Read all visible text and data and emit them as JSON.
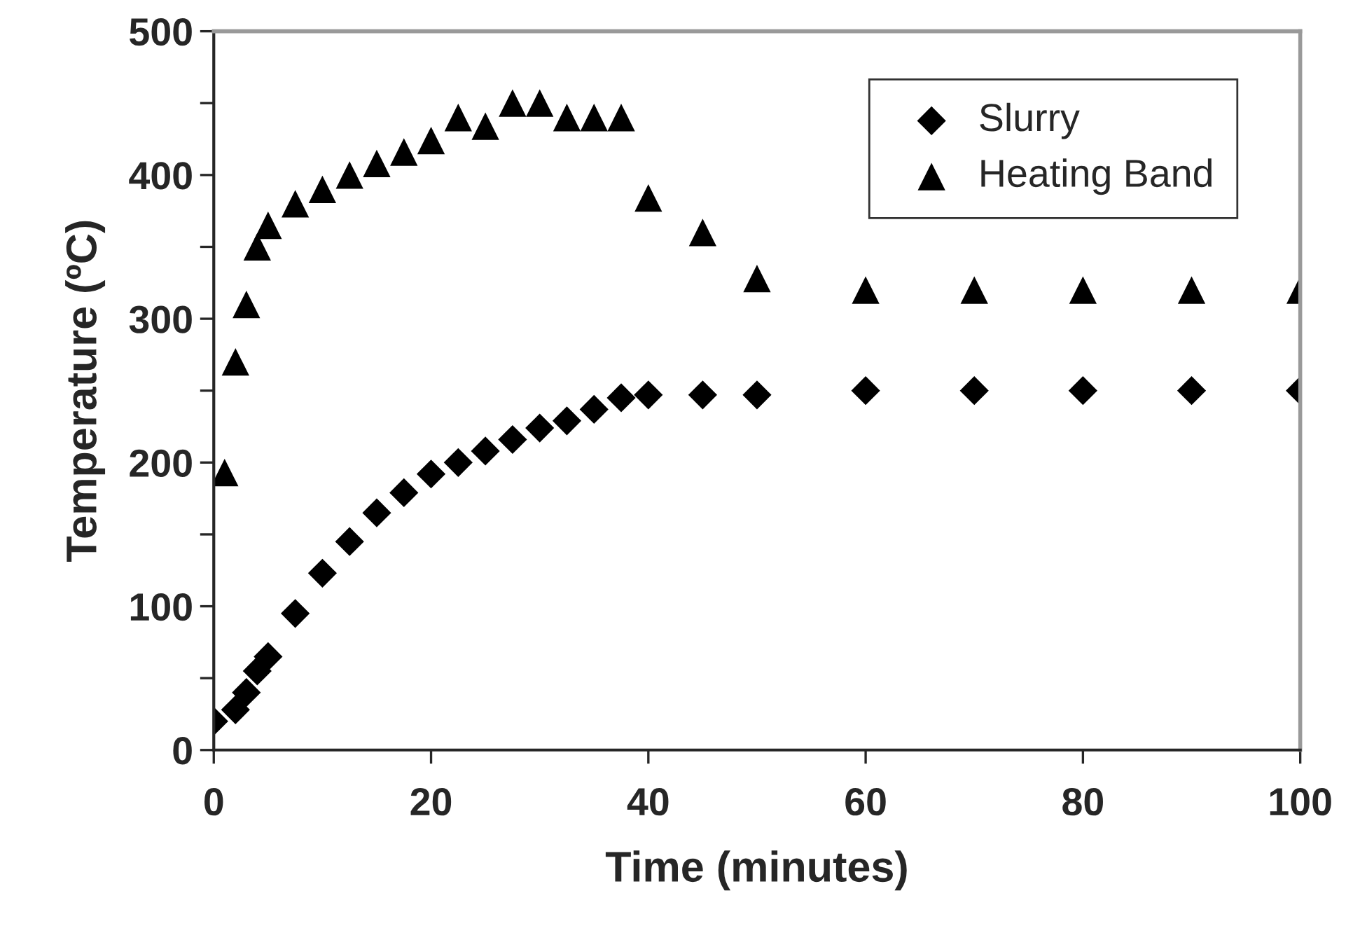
{
  "chart_data": {
    "type": "scatter",
    "xlabel": "Time (minutes)",
    "ylabel": "Temperature (ºC)",
    "xlim": [
      0,
      100
    ],
    "xticks": [
      0,
      20,
      40,
      60,
      80,
      100
    ],
    "ylim": [
      0,
      500
    ],
    "yticks": [
      0,
      {
        "value": 50,
        "label": null
      },
      100,
      {
        "value": 150,
        "label": null
      },
      200,
      {
        "value": 250,
        "label": null
      },
      300,
      {
        "value": 350,
        "label": null
      },
      400,
      {
        "value": 450,
        "label": null
      },
      500
    ],
    "legend": "top right",
    "grid": false,
    "series": [
      {
        "name": "Slurry",
        "color": "#000000",
        "marker": "diamond",
        "x": [
          0,
          2,
          3,
          4,
          5,
          7.5,
          10,
          12.5,
          15,
          17.5,
          20,
          22.5,
          25,
          27.5,
          30,
          32.5,
          35,
          37.5,
          40,
          45,
          50,
          60,
          70,
          80,
          90,
          100
        ],
        "values": [
          20,
          28,
          40,
          55,
          65,
          95,
          123,
          145,
          165,
          179,
          192,
          200,
          208,
          216,
          224,
          229,
          237,
          245,
          247,
          247,
          247,
          250,
          250,
          250,
          250,
          250
        ]
      },
      {
        "name": "Heating Band",
        "color": "#000000",
        "marker": "triangle",
        "x": [
          1,
          2,
          3,
          4,
          5,
          7.5,
          10,
          12.5,
          15,
          17.5,
          20,
          22.5,
          25,
          27.5,
          30,
          32.5,
          35,
          37.5,
          40,
          45,
          50,
          60,
          70,
          80,
          90,
          100
        ],
        "values": [
          193,
          270,
          310,
          350,
          365,
          380,
          390,
          400,
          408,
          416,
          424,
          440,
          434,
          450,
          450,
          440,
          440,
          440,
          384,
          360,
          328,
          320,
          320,
          320,
          320,
          320
        ]
      }
    ]
  }
}
